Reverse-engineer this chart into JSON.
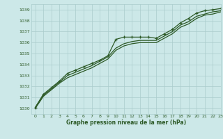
{
  "title": "Graphe pression niveau de la mer (hPa)",
  "bg_color": "#cce8e8",
  "grid_color": "#aacccc",
  "line_color": "#2d5a27",
  "marker_color": "#2d5a27",
  "xlim": [
    -0.5,
    23
  ],
  "ylim": [
    1029.5,
    1039.5
  ],
  "yticks": [
    1030,
    1031,
    1032,
    1033,
    1034,
    1035,
    1036,
    1037,
    1038,
    1039
  ],
  "xticks": [
    0,
    1,
    2,
    3,
    4,
    5,
    6,
    7,
    8,
    9,
    10,
    11,
    12,
    13,
    14,
    15,
    16,
    17,
    18,
    19,
    20,
    21,
    22,
    23
  ],
  "series": [
    [
      1030.1,
      1031.3,
      1031.9,
      1032.5,
      1033.2,
      1033.5,
      1033.8,
      1034.1,
      1034.4,
      1034.8,
      1036.3,
      1036.5,
      1036.5,
      1036.5,
      1036.5,
      1036.4,
      1036.8,
      1037.2,
      1037.8,
      1038.2,
      1038.7,
      1038.9,
      1039.0,
      1039.1
    ],
    [
      1030.1,
      1031.2,
      1031.8,
      1032.4,
      1033.0,
      1033.3,
      1033.6,
      1033.9,
      1034.3,
      1034.7,
      1035.5,
      1035.9,
      1036.1,
      1036.2,
      1036.2,
      1036.2,
      1036.6,
      1037.0,
      1037.6,
      1037.9,
      1038.4,
      1038.6,
      1038.8,
      1038.9
    ],
    [
      1030.0,
      1031.1,
      1031.7,
      1032.3,
      1032.8,
      1033.1,
      1033.4,
      1033.7,
      1034.1,
      1034.5,
      1035.3,
      1035.7,
      1035.9,
      1036.0,
      1036.0,
      1036.0,
      1036.4,
      1036.8,
      1037.4,
      1037.7,
      1038.2,
      1038.5,
      1038.6,
      1038.8
    ]
  ]
}
